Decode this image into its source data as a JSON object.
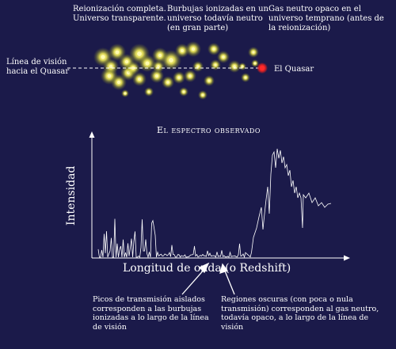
{
  "labels": {
    "reionization": "Reionización completa.\nUniverso transparente.",
    "bubbles": "Burbujas ionizadas en un\nuniverso todavía neutro\n(en gran parte)",
    "neutral_gas": "Gas neutro opaco en el\nuniverso temprano (antes de\nla reionización)",
    "line_of_sight": "Línea de visión\nhacia el Quasar",
    "quasar": "El Quasar",
    "spectrum_title": "El espectro observado",
    "y_axis": "Intensidad",
    "x_axis": "Longitud de onda (o Redshift)",
    "note_peaks": "Picos de transmisión aislados\ncorresponden a las burbujas\nionizadas a lo largo de la línea\nde visión",
    "note_dark": "Regiones oscuras (con poca o nula\ntransmisión) corresponden al gas neutro,\ntodavía opaco, a lo largo de la línea de\nvisión"
  },
  "colors": {
    "background": "#1b1a4a",
    "bubble": "#fff07a",
    "glow": "#d8dc40",
    "quasar": "#e32020",
    "line": "#ffffff"
  }
}
